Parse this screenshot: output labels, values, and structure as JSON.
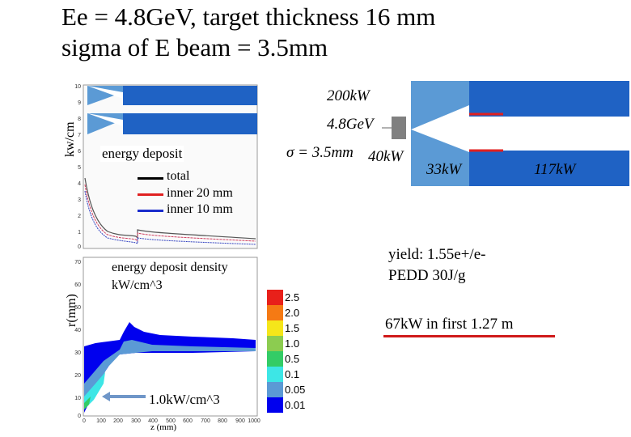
{
  "title": {
    "line1": "Ee = 4.8GeV, target thickness 16 mm",
    "line2": "sigma of E beam = 3.5mm"
  },
  "top_plot": {
    "ylabel": "kw/cm",
    "yticks": [
      "10",
      "9",
      "8",
      "7",
      "6",
      "5",
      "4",
      "3",
      "2",
      "1",
      "0"
    ],
    "caption": "energy deposit",
    "legend": [
      {
        "label": "total",
        "color": "#000000"
      },
      {
        "label": "inner 20 mm",
        "color": "#e02020"
      },
      {
        "label": "inner 10 mm",
        "color": "#1a2ccc"
      }
    ]
  },
  "bottom_plot": {
    "ylabel": "r(mm)",
    "xlabel": "z (mm)",
    "yticks": [
      "70",
      "60",
      "50",
      "40",
      "30",
      "20",
      "10",
      "0"
    ],
    "xticks": [
      "0",
      "100",
      "200",
      "300",
      "400",
      "500",
      "600",
      "700",
      "800",
      "900",
      "1000"
    ],
    "caption_line1": "energy deposit density",
    "caption_line2": "kW/cm^3",
    "annotation": "1.0kW/cm^3"
  },
  "color_scale": [
    {
      "label": "2.5",
      "color": "#e8201a"
    },
    {
      "label": "2.0",
      "color": "#f57a14"
    },
    {
      "label": "1.5",
      "color": "#f5e61a"
    },
    {
      "label": "1.0",
      "color": "#8ccc50"
    },
    {
      "label": "0.5",
      "color": "#33cc66"
    },
    {
      "label": "0.1",
      "color": "#3de6e6"
    },
    {
      "label": "0.05",
      "color": "#5b9ad5"
    },
    {
      "label": "0.01",
      "color": "#0000ee"
    }
  ],
  "diagram": {
    "power_in": "200kW",
    "energy": "4.8GeV",
    "sigma": "σ = 3.5mm",
    "target_power": "40kW",
    "cone_power": "33kW",
    "tube_power": "117kW"
  },
  "notes": {
    "yield_line1": "yield:  1.55e+/e-",
    "yield_line2": "PEDD 30J/g",
    "first_meter": "67kW in first 1.27 m"
  }
}
